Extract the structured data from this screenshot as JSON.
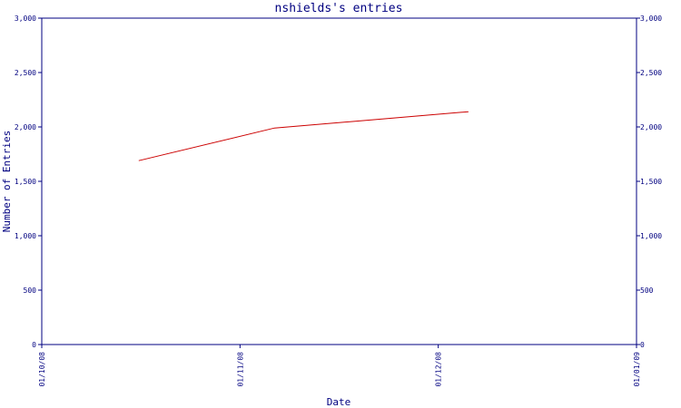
{
  "chart_data": {
    "type": "line",
    "title": "nshields's entries",
    "xlabel": "Date",
    "ylabel": "Number of Entries",
    "x_ticks": [
      "01/10/08",
      "01/11/08",
      "01/12/08",
      "01/01/09"
    ],
    "xlim": [
      "2008-10-01",
      "2009-01-01"
    ],
    "ylim": [
      0,
      3000
    ],
    "y_ticks": [
      0,
      500,
      1000,
      1500,
      2000,
      2500,
      3000
    ],
    "y_tick_labels": [
      "0",
      "500",
      "1,000",
      "1,500",
      "2,000",
      "2,500",
      "3,000"
    ],
    "series": [
      {
        "color": "#cc0000",
        "points": [
          {
            "x": "2008-10-16",
            "y": 1690
          },
          {
            "x": "2008-11-06",
            "y": 1990
          },
          {
            "x": "2008-12-06",
            "y": 2140
          }
        ]
      }
    ],
    "grid": false,
    "legend": "none",
    "axis_color": "#000080"
  }
}
